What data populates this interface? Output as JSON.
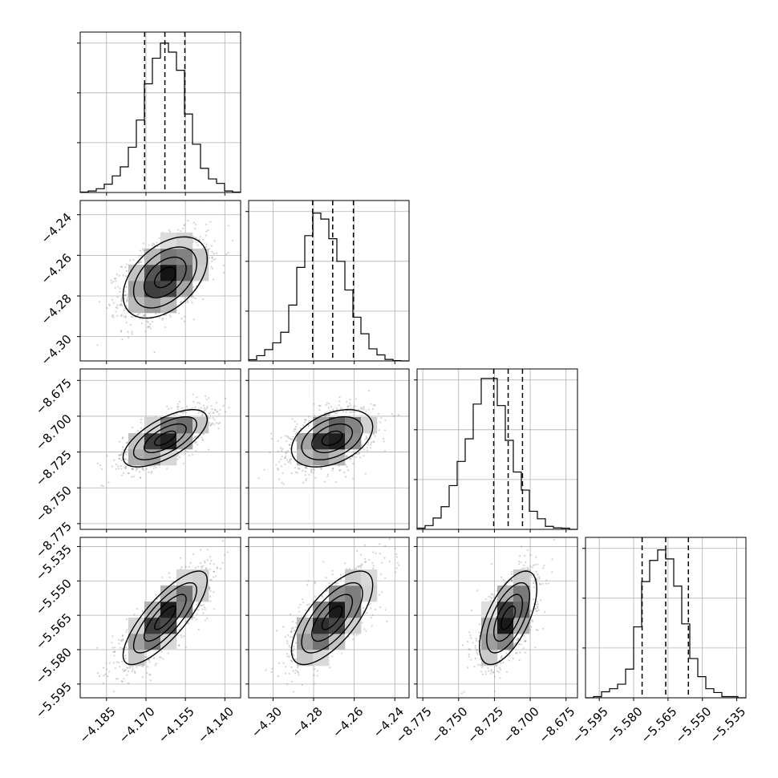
{
  "chart_data": {
    "type": "corner",
    "params": [
      {
        "range": [
          -4.195,
          -4.134
        ],
        "ticks": [
          -4.185,
          -4.17,
          -4.155,
          -4.14
        ],
        "tick_labels": [
          "−4.185",
          "−4.170",
          "−4.155",
          "−4.140"
        ],
        "quantiles": [
          -4.1705,
          -4.1628,
          -4.1552
        ]
      },
      {
        "range": [
          -4.312,
          -4.233
        ],
        "ticks": [
          -4.3,
          -4.28,
          -4.26,
          -4.24
        ],
        "tick_labels": [
          "−4.30",
          "−4.28",
          "−4.26",
          "−4.24"
        ],
        "quantiles": [
          -4.2805,
          -4.2706,
          -4.2604
        ]
      },
      {
        "range": [
          -8.779,
          -8.667
        ],
        "ticks": [
          -8.775,
          -8.75,
          -8.725,
          -8.7,
          -8.675
        ],
        "tick_labels": [
          "−8.775",
          "−8.750",
          "−8.725",
          "−8.700",
          "−8.675"
        ],
        "quantiles": [
          -8.7255,
          -8.7154,
          -8.7054
        ]
      },
      {
        "range": [
          -5.601,
          -5.531
        ],
        "ticks": [
          -5.595,
          -5.58,
          -5.565,
          -5.55,
          -5.535
        ],
        "tick_labels": [
          "−5.595",
          "−5.580",
          "−5.565",
          "−5.550",
          "−5.535"
        ],
        "quantiles": [
          -5.5763,
          -5.566,
          -5.5561
        ]
      }
    ],
    "histograms": [
      [
        0.003,
        0.01,
        0.025,
        0.055,
        0.11,
        0.17,
        0.3,
        0.48,
        0.72,
        0.89,
        0.99,
        0.93,
        0.81,
        0.52,
        0.32,
        0.16,
        0.09,
        0.06,
        0.01,
        0.003
      ],
      [
        0.008,
        0.035,
        0.075,
        0.12,
        0.19,
        0.37,
        0.62,
        0.83,
        0.98,
        0.94,
        0.81,
        0.66,
        0.47,
        0.29,
        0.18,
        0.08,
        0.04,
        0.01,
        0.002,
        0.0
      ],
      [
        0.008,
        0.025,
        0.075,
        0.15,
        0.29,
        0.45,
        0.6,
        0.83,
        1.0,
        1.0,
        0.82,
        0.59,
        0.38,
        0.26,
        0.12,
        0.07,
        0.02,
        0.01,
        0.008,
        0.0
      ],
      [
        0.0,
        0.008,
        0.04,
        0.06,
        0.09,
        0.19,
        0.47,
        0.77,
        0.91,
        0.98,
        0.92,
        0.74,
        0.49,
        0.26,
        0.14,
        0.06,
        0.035,
        0.008,
        0.008,
        0.0
      ]
    ],
    "pairs": [
      {
        "row": 1,
        "col": 0,
        "mean": [
          -4.1627,
          -4.2709
        ],
        "sd": [
          0.008,
          0.01
        ],
        "rho": 0.45
      },
      {
        "row": 2,
        "col": 0,
        "mean": [
          -4.1627,
          -8.7154
        ],
        "sd": [
          0.008,
          0.01
        ],
        "rho": 0.66
      },
      {
        "row": 2,
        "col": 1,
        "mean": [
          -4.2709,
          -8.7154
        ],
        "sd": [
          0.01,
          0.01
        ],
        "rho": 0.4
      },
      {
        "row": 3,
        "col": 0,
        "mean": [
          -4.1627,
          -5.5661
        ],
        "sd": [
          0.008,
          0.0102
        ],
        "rho": 0.8
      },
      {
        "row": 3,
        "col": 1,
        "mean": [
          -4.2709,
          -5.5661
        ],
        "sd": [
          0.01,
          0.0102
        ],
        "rho": 0.7
      },
      {
        "row": 3,
        "col": 2,
        "mean": [
          -8.7154,
          -5.5661
        ],
        "sd": [
          0.01,
          0.0102
        ],
        "rho": 0.62
      }
    ],
    "contour_levels_sigma": [
      0.5,
      1.0,
      1.5,
      2.0
    ],
    "grid": true,
    "colors": {
      "line": "#000000",
      "grid": "#b0b0b0",
      "points": "#7f7f7f",
      "density": "#000000"
    }
  }
}
